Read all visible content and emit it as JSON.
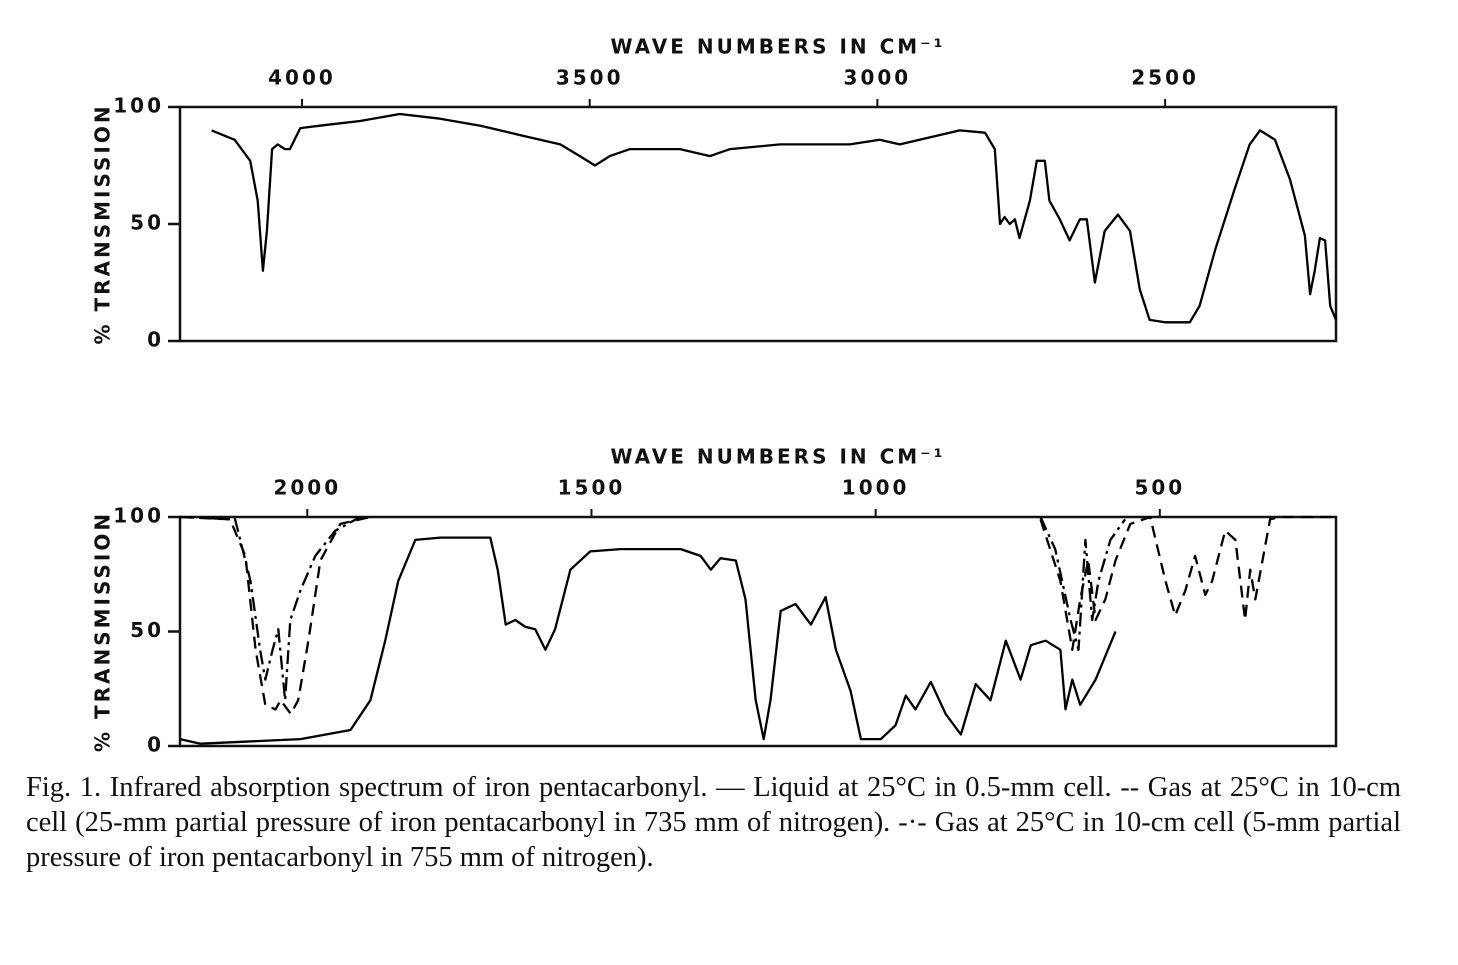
{
  "chart_data": [
    {
      "type": "line",
      "title": "WAVE NUMBERS IN CM⁻¹",
      "y_label": "% TRANSMISSION",
      "xlim": [
        4212,
        2203
      ],
      "xticks": [
        4000,
        3500,
        3000,
        2500
      ],
      "ylim": [
        0,
        100
      ],
      "yticks": [
        0,
        50,
        100
      ],
      "series": [
        {
          "color": "#000000",
          "dash": "solid",
          "x": [
            4157,
            4117,
            4090,
            4077,
            4068,
            4061,
            4052,
            4042,
            4030,
            4021,
            4003,
            3969,
            3899,
            3830,
            3760,
            3690,
            3621,
            3551,
            3517,
            3491,
            3465,
            3430,
            3343,
            3291,
            3256,
            3169,
            3048,
            2996,
            2961,
            2909,
            2857,
            2813,
            2796,
            2787,
            2779,
            2770,
            2761,
            2753,
            2735,
            2723,
            2709,
            2701,
            2683,
            2666,
            2648,
            2636,
            2622,
            2605,
            2582,
            2561,
            2544,
            2527,
            2500,
            2457,
            2440,
            2413,
            2379,
            2353,
            2335,
            2309,
            2283,
            2257,
            2248,
            2240,
            2231,
            2222,
            2213,
            2203
          ],
          "values": [
            90,
            86,
            77,
            60,
            30,
            47,
            82,
            84,
            82,
            82,
            91,
            92,
            94,
            97,
            95,
            92,
            88,
            84,
            79,
            75,
            79,
            82,
            82,
            79,
            82,
            84,
            84,
            86,
            84,
            87,
            90,
            89,
            82,
            50,
            53,
            50,
            52,
            44,
            60,
            77,
            77,
            60,
            52,
            43,
            52,
            52,
            25,
            47,
            54,
            47,
            22,
            9,
            8,
            8,
            15,
            39,
            65,
            84,
            90,
            86,
            69,
            45,
            20,
            30,
            44,
            43,
            15,
            9
          ]
        }
      ]
    },
    {
      "type": "line",
      "title": "WAVE NUMBERS IN CM⁻¹",
      "y_label": "% TRANSMISSION",
      "xlim": [
        2224,
        190
      ],
      "xticks": [
        2000,
        1500,
        1000,
        500
      ],
      "ylim": [
        0,
        100
      ],
      "yticks": [
        0,
        50,
        100
      ],
      "series": [
        {
          "color": "#000000",
          "dash": "solid",
          "x": [
            2224,
            2188,
            2012,
            1924,
            1889,
            1863,
            1840,
            1810,
            1766,
            1678,
            1665,
            1651,
            1634,
            1616,
            1599,
            1581,
            1564,
            1537,
            1502,
            1449,
            1343,
            1308,
            1290,
            1273,
            1246,
            1229,
            1211,
            1197,
            1185,
            1167,
            1141,
            1114,
            1088,
            1070,
            1044,
            1026,
            991,
            965,
            947,
            930,
            903,
            877,
            850,
            824,
            798,
            771,
            745,
            727,
            701,
            675,
            666,
            654,
            640,
            613,
            578
          ],
          "values": [
            3,
            1,
            3,
            7,
            20,
            46,
            72,
            90,
            91,
            91,
            77,
            53,
            55,
            52,
            51,
            42,
            51,
            77,
            85,
            86,
            86,
            83,
            77,
            82,
            81,
            64,
            20,
            3,
            20,
            59,
            62,
            53,
            65,
            42,
            24,
            3,
            3,
            9,
            22,
            16,
            28,
            14,
            5,
            27,
            20,
            46,
            29,
            44,
            46,
            42,
            16,
            29,
            18,
            29,
            50
          ]
        },
        {
          "color": "#000000",
          "dash": "dashed",
          "x": [
            2224,
            2136,
            2109,
            2091,
            2074,
            2056,
            2047,
            2029,
            2016,
            1998,
            1977,
            1942,
            1889,
            null,
            710,
            675,
            654,
            640,
            626,
            613,
            596,
            578,
            552,
            517,
            490,
            473,
            455,
            438,
            420,
            408,
            385,
            367,
            350,
            341,
            332,
            306,
            288,
            190
          ],
          "values": [
            100,
            99,
            83,
            42,
            18,
            16,
            20,
            14,
            20,
            46,
            81,
            97,
            100,
            null,
            99,
            72,
            42,
            64,
            81,
            55,
            64,
            81,
            97,
            100,
            72,
            57,
            68,
            83,
            66,
            72,
            94,
            90,
            55,
            77,
            64,
            99,
            100,
            100
          ]
        },
        {
          "color": "#000000",
          "dash": "dashdot",
          "x": [
            2224,
            2127,
            2100,
            2083,
            2074,
            2061,
            2051,
            2039,
            2030,
            2012,
            1986,
            1951,
            1907,
            null,
            710,
            684,
            657,
            643,
            631,
            619,
            608,
            587,
            561
          ],
          "values": [
            100,
            99,
            72,
            42,
            29,
            42,
            51,
            20,
            55,
            68,
            83,
            94,
            100,
            null,
            100,
            86,
            55,
            42,
            90,
            55,
            72,
            90,
            99
          ]
        }
      ]
    }
  ],
  "caption": "Fig. 1. Infrared absorption spectrum of iron pentacarbonyl. — Liquid at 25°C in 0.5-mm cell. -- Gas at 25°C in 10-cm cell (25-mm partial pressure of iron pentacarbonyl in 735 mm of nitrogen). -·- Gas at 25°C in 10-cm cell (5-mm partial pressure of iron pentacarbonyl in 755 mm of nitrogen)."
}
